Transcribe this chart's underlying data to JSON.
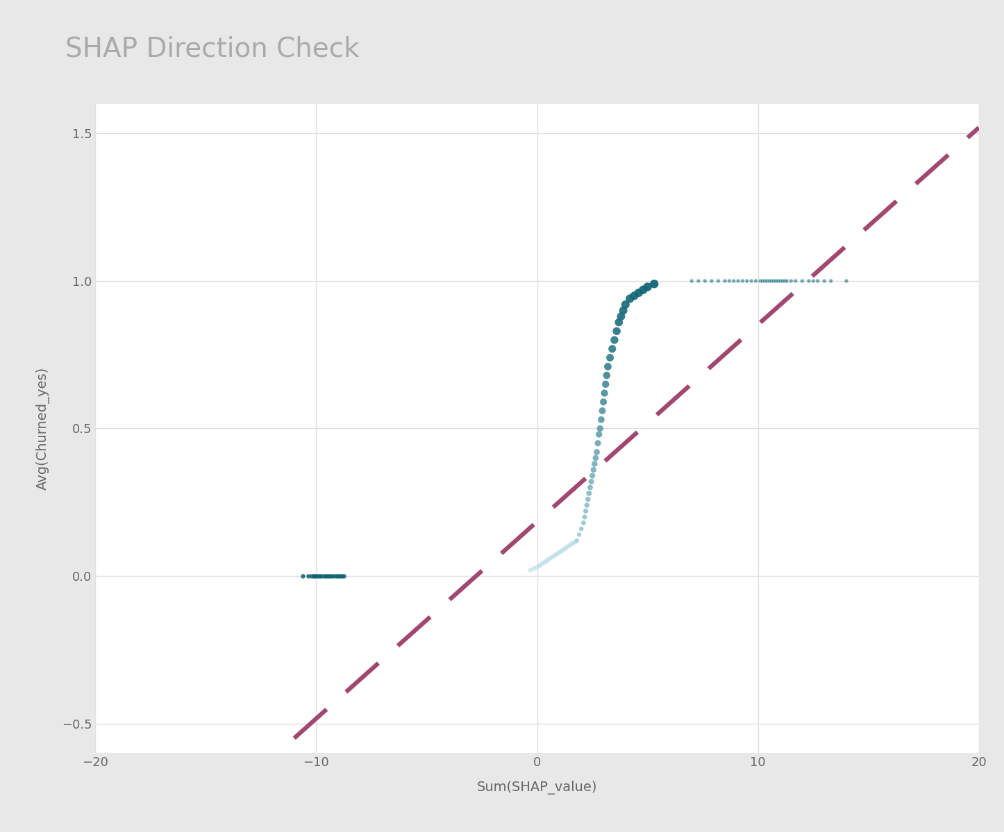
{
  "title": "SHAP Direction Check",
  "xlabel": "Sum(SHAP_value)",
  "ylabel": "Avg(Churned_yes)",
  "xlim": [
    -20,
    20
  ],
  "ylim": [
    -0.6,
    1.6
  ],
  "xticks": [
    -20,
    -10,
    0,
    10,
    20
  ],
  "yticks": [
    -0.5,
    0.0,
    0.5,
    1.0,
    1.5
  ],
  "background_color": "#e8e8e8",
  "plot_background": "#ffffff",
  "title_color": "#aaaaaa",
  "title_fontsize": 28,
  "axis_label_fontsize": 14,
  "tick_fontsize": 13,
  "dashed_line_color": "#a04870",
  "dashed_line_x1": -11.0,
  "dashed_line_y1": -0.55,
  "dashed_line_x2": 20.0,
  "dashed_line_y2": 1.52,
  "scatter_color_dark": "#0a6070",
  "scatter_color_light": "#b8dde6",
  "grid_color": "#e0e0e0",
  "c1_x": [
    -10.6,
    -10.35,
    -10.2,
    -10.1,
    -10.05,
    -9.95,
    -9.85,
    -9.75,
    -9.65,
    -9.55,
    -9.45,
    -9.35,
    -9.25,
    -9.15,
    -9.05,
    -8.95,
    -8.85,
    -8.75
  ],
  "c1_y": [
    0.0,
    0.0,
    0.0,
    0.0,
    0.0,
    0.0,
    0.0,
    0.0,
    0.0,
    0.0,
    0.0,
    0.0,
    0.0,
    0.0,
    0.0,
    0.0,
    0.0,
    0.0
  ],
  "c2_x": [
    -0.3,
    -0.15,
    0.0,
    0.1,
    0.2,
    0.3,
    0.4,
    0.5,
    0.6,
    0.7,
    0.8,
    0.9,
    1.0,
    1.1,
    1.2,
    1.3,
    1.4,
    1.5,
    1.6,
    1.7
  ],
  "c2_y": [
    0.02,
    0.025,
    0.03,
    0.035,
    0.04,
    0.045,
    0.05,
    0.055,
    0.06,
    0.065,
    0.07,
    0.075,
    0.08,
    0.085,
    0.09,
    0.095,
    0.1,
    0.105,
    0.11,
    0.115
  ],
  "c3_x": [
    1.8,
    1.9,
    2.0,
    2.1,
    2.15,
    2.2,
    2.25,
    2.3,
    2.35,
    2.4,
    2.45,
    2.5,
    2.55,
    2.6,
    2.65,
    2.7,
    2.75,
    2.8,
    2.85,
    2.9,
    2.95,
    3.0,
    3.05,
    3.1,
    3.15,
    3.2,
    3.3,
    3.4,
    3.5,
    3.6,
    3.7,
    3.8,
    3.9,
    4.0,
    4.2,
    4.4,
    4.6,
    4.8,
    5.0,
    5.3
  ],
  "c3_y": [
    0.12,
    0.14,
    0.16,
    0.18,
    0.2,
    0.22,
    0.24,
    0.26,
    0.28,
    0.3,
    0.32,
    0.34,
    0.36,
    0.38,
    0.4,
    0.42,
    0.45,
    0.48,
    0.5,
    0.53,
    0.56,
    0.59,
    0.62,
    0.65,
    0.68,
    0.71,
    0.74,
    0.77,
    0.8,
    0.83,
    0.86,
    0.88,
    0.9,
    0.92,
    0.94,
    0.95,
    0.96,
    0.97,
    0.98,
    0.99
  ],
  "c4_x": [
    7.0,
    7.3,
    7.6,
    7.9,
    8.2,
    8.5,
    8.7,
    8.9,
    9.1,
    9.3,
    9.5,
    9.7,
    9.9,
    10.1,
    10.2,
    10.3,
    10.4,
    10.5,
    10.6,
    10.7,
    10.8,
    10.9,
    11.0,
    11.1,
    11.2,
    11.3,
    11.5,
    11.7,
    12.0,
    12.3,
    12.5,
    12.7,
    13.0,
    13.3,
    14.0
  ],
  "c4_y": [
    1.0,
    1.0,
    1.0,
    1.0,
    1.0,
    1.0,
    1.0,
    1.0,
    1.0,
    1.0,
    1.0,
    1.0,
    1.0,
    1.0,
    1.0,
    1.0,
    1.0,
    1.0,
    1.0,
    1.0,
    1.0,
    1.0,
    1.0,
    1.0,
    1.0,
    1.0,
    1.0,
    1.0,
    1.0,
    1.0,
    1.0,
    1.0,
    1.0,
    1.0,
    1.0
  ]
}
